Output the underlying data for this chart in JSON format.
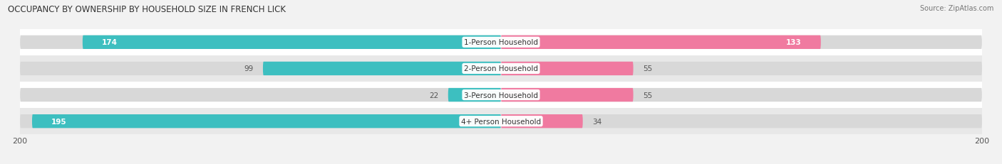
{
  "title": "OCCUPANCY BY OWNERSHIP BY HOUSEHOLD SIZE IN FRENCH LICK",
  "source": "Source: ZipAtlas.com",
  "categories": [
    "1-Person Household",
    "2-Person Household",
    "3-Person Household",
    "4+ Person Household"
  ],
  "owner_values": [
    174,
    99,
    22,
    195
  ],
  "renter_values": [
    133,
    55,
    55,
    34
  ],
  "owner_color": "#3dbfc0",
  "renter_color": "#f07aA0",
  "max_val": 200,
  "bg_color": "#f2f2f2",
  "row_colors": [
    "#ffffff",
    "#e8e8e8",
    "#ffffff",
    "#e8e8e8"
  ],
  "bar_track_color": "#d8d8d8",
  "title_fontsize": 8.5,
  "label_fontsize": 7.5,
  "value_fontsize": 7.5,
  "axis_tick_fontsize": 8,
  "legend_fontsize": 8
}
